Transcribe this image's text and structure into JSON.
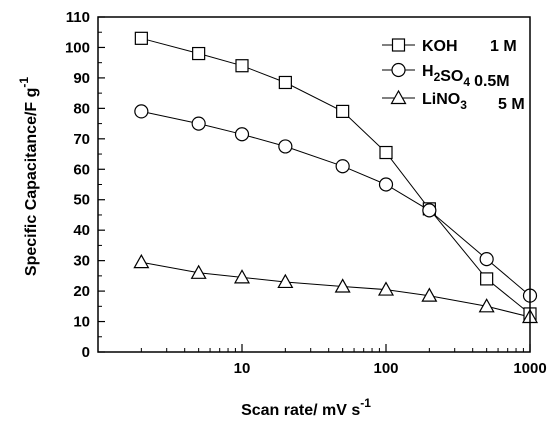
{
  "chart_data": {
    "type": "line",
    "xlabel": "Scan rate/ mV s",
    "xlabel_sup": "-1",
    "ylabel": "Specific Capacitance/F g",
    "ylabel_sup": "-1",
    "x_scale": "log",
    "xlim": [
      1,
      1000
    ],
    "ylim": [
      0,
      110
    ],
    "x_ticks": [
      10,
      100,
      1000
    ],
    "y_ticks": [
      0,
      10,
      20,
      30,
      40,
      50,
      60,
      70,
      80,
      90,
      100,
      110
    ],
    "grid": false,
    "legend_position": "top-right",
    "x": [
      2,
      5,
      10,
      20,
      50,
      100,
      200,
      500,
      1000
    ],
    "series": [
      {
        "name": "KOH",
        "concentration": "1 M",
        "marker": "square",
        "values": [
          103,
          98,
          94,
          88.5,
          79,
          65.5,
          47,
          24,
          12.5
        ]
      },
      {
        "name": "H2SO4",
        "concentration": "0.5M",
        "marker": "circle",
        "values": [
          79,
          75,
          71.5,
          67.5,
          61,
          55,
          46.5,
          30.5,
          18.5
        ]
      },
      {
        "name": "LiNO3",
        "concentration": "5 M",
        "marker": "triangle",
        "values": [
          29.5,
          26,
          24.5,
          23,
          21.5,
          20.5,
          18.5,
          15,
          11.5
        ]
      }
    ]
  }
}
